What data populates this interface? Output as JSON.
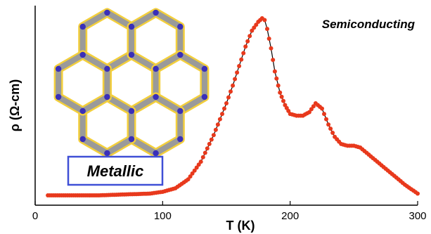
{
  "chart_data": {
    "type": "scatter",
    "xlabel": "T (K)",
    "ylabel": "ρ (Ω-cm)",
    "xlim": [
      0,
      300
    ],
    "ylim": [
      0,
      1
    ],
    "x_ticks": [
      "0",
      "100",
      "200",
      "300"
    ],
    "y_ticks_labeled": false,
    "grid": false,
    "legend": "none",
    "marker_color": "#e8391c",
    "line_color": "#000000",
    "annotation_color": "#3f4fd6",
    "annotations": {
      "semiconducting": "Semiconducting",
      "metallic": "Metallic"
    },
    "inset": "honeycomb-framework-structure-image",
    "series": [
      {
        "x": [
          10,
          30,
          50,
          70,
          90,
          100,
          110,
          120,
          130,
          140,
          150,
          155,
          160,
          165,
          170,
          175,
          178,
          180,
          182,
          185,
          188,
          192,
          196,
          200,
          205,
          210,
          215,
          220,
          225,
          230,
          235,
          240,
          245,
          250,
          255,
          260,
          270,
          280,
          290,
          300
        ],
        "y": [
          0.0,
          0.0,
          0.0,
          0.005,
          0.01,
          0.02,
          0.04,
          0.09,
          0.19,
          0.34,
          0.52,
          0.62,
          0.73,
          0.84,
          0.93,
          0.98,
          1.0,
          0.99,
          0.94,
          0.83,
          0.7,
          0.58,
          0.51,
          0.46,
          0.45,
          0.45,
          0.47,
          0.52,
          0.49,
          0.4,
          0.33,
          0.29,
          0.28,
          0.28,
          0.27,
          0.24,
          0.18,
          0.12,
          0.06,
          0.01
        ]
      }
    ]
  }
}
